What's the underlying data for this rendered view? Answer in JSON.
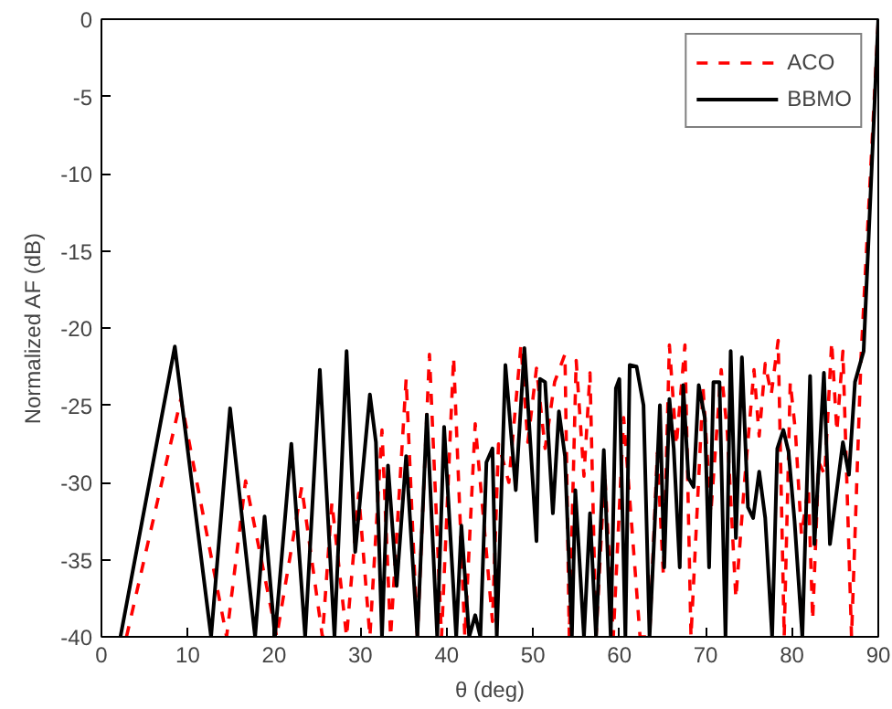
{
  "chart_data": {
    "type": "line",
    "xlabel": "θ (deg)",
    "ylabel": "Normalized AF (dB)",
    "xlim": [
      0,
      90
    ],
    "ylim": [
      -40,
      0
    ],
    "xticks": [
      0,
      10,
      20,
      30,
      40,
      50,
      60,
      70,
      80,
      90
    ],
    "yticks": [
      -40,
      -35,
      -30,
      -25,
      -20,
      -15,
      -10,
      -5,
      0
    ],
    "grid": false,
    "legend": "top right",
    "marker": "none",
    "series": [
      {
        "name": "ACO",
        "color": "#ff0000",
        "line_style": "dashed",
        "x": [
          2.9,
          9.2,
          14.5,
          16.7,
          20.3,
          23.2,
          25.6,
          26.7,
          28.4,
          29.8,
          31.1,
          32.5,
          33.5,
          35.3,
          36.6,
          38.0,
          39.4,
          40.8,
          42.1,
          43.3,
          45.3,
          46.0,
          47.2,
          48.6,
          49.4,
          50.4,
          51.4,
          52.5,
          53.7,
          54.2,
          55.0,
          55.9,
          56.6,
          57.3,
          58.3,
          59.3,
          60.5,
          62.4,
          63.5,
          64.4,
          65.1,
          65.8,
          66.6,
          67.6,
          68.3,
          69.7,
          70.6,
          71.8,
          72.5,
          73.5,
          74.5,
          75.6,
          76.2,
          76.9,
          77.6,
          78.4,
          79.1,
          79.8,
          80.4,
          81.1,
          81.9,
          82.4,
          83.1,
          83.8,
          84.6,
          85.2,
          85.9,
          86.9,
          88.0,
          90
        ],
        "values": [
          -40,
          -24.6,
          -40,
          -29.9,
          -40,
          -30.3,
          -40,
          -31.3,
          -40,
          -30.7,
          -40,
          -26.6,
          -40,
          -23.3,
          -40,
          -21.7,
          -40,
          -21.9,
          -40,
          -26.2,
          -39,
          -27.5,
          -30,
          -21.1,
          -27.4,
          -22.6,
          -27.8,
          -23.5,
          -21.7,
          -40,
          -22.1,
          -29.6,
          -22.9,
          -40,
          -29.3,
          -40,
          -25.8,
          -40,
          -40,
          -28.1,
          -36,
          -21.1,
          -27.6,
          -21.1,
          -40,
          -23.9,
          -32,
          -22.7,
          -26.7,
          -37.5,
          -30,
          -22.7,
          -27,
          -22.3,
          -24.3,
          -20.8,
          -40,
          -23.5,
          -26.7,
          -33.4,
          -30.3,
          -38.9,
          -28.7,
          -29.5,
          -20.9,
          -26.7,
          -21.5,
          -40,
          -21.9,
          -0.1
        ]
      },
      {
        "name": "BBMO",
        "color": "#000000",
        "line_style": "solid",
        "x": [
          2.2,
          8.5,
          12.7,
          14.9,
          17.8,
          18.9,
          20.1,
          22.0,
          23.6,
          25.3,
          27.0,
          28.4,
          29.4,
          31.1,
          31.8,
          32.5,
          33.2,
          34.2,
          35.3,
          36.6,
          37.7,
          38.9,
          39.7,
          41.1,
          41.7,
          42.6,
          43.3,
          43.9,
          44.6,
          45.3,
          45.8,
          46.8,
          48.0,
          49.0,
          50.4,
          50.8,
          51.4,
          52.3,
          53.0,
          53.7,
          54.5,
          54.9,
          55.9,
          56.6,
          57.3,
          58.2,
          59.0,
          59.6,
          60.0,
          60.7,
          61.2,
          62.0,
          62.8,
          63.5,
          64.0,
          64.7,
          65.2,
          65.8,
          66.3,
          67.0,
          67.4,
          68.0,
          68.6,
          69.2,
          69.9,
          70.4,
          70.9,
          71.6,
          72.3,
          72.9,
          73.5,
          74.2,
          74.9,
          75.5,
          76.2,
          76.9,
          77.7,
          78.3,
          79.0,
          79.6,
          80.3,
          81.2,
          82.1,
          82.6,
          83.7,
          84.4,
          85.9,
          86.6,
          87.3,
          88.3,
          90
        ],
        "values": [
          -40,
          -21.2,
          -40,
          -25.2,
          -40,
          -32.2,
          -40,
          -27.5,
          -40,
          -22.7,
          -40,
          -21.5,
          -34.5,
          -24.3,
          -27.4,
          -40,
          -28.9,
          -36.7,
          -28.3,
          -40,
          -25.6,
          -40,
          -26.4,
          -40,
          -32.8,
          -40,
          -38.6,
          -40,
          -28.7,
          -27.8,
          -40,
          -22.4,
          -30.5,
          -21.3,
          -33.8,
          -23.3,
          -23.5,
          -32.0,
          -25.4,
          -28.3,
          -40,
          -30.5,
          -40,
          -32.0,
          -40,
          -27.9,
          -40,
          -23.9,
          -23.3,
          -40,
          -22.4,
          -22.5,
          -25.0,
          -40,
          -34.0,
          -25.0,
          -35.5,
          -24.6,
          -27.8,
          -35.5,
          -23.7,
          -29.7,
          -30.3,
          -23.7,
          -25.8,
          -35.5,
          -23.5,
          -23.5,
          -40,
          -21.5,
          -33.6,
          -21.9,
          -31.6,
          -32.3,
          -29.3,
          -32.3,
          -40,
          -27.8,
          -26.6,
          -28.0,
          -32.5,
          -40,
          -23.1,
          -34.0,
          -22.9,
          -34.0,
          -27.4,
          -29.5,
          -23.5,
          -21.5,
          0
        ]
      }
    ]
  }
}
